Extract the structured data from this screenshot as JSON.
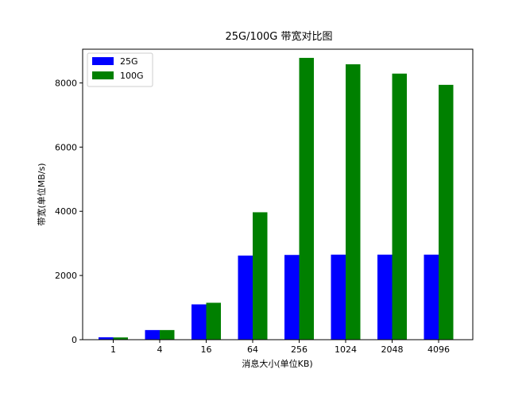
{
  "chart_data": {
    "type": "bar",
    "title": "25G/100G 带宽对比图",
    "xlabel": "消息大小(单位KB)",
    "ylabel": "带宽(单位MB/s)",
    "categories": [
      "1",
      "4",
      "16",
      "64",
      "256",
      "1024",
      "2048",
      "4096"
    ],
    "series": [
      {
        "name": "25G",
        "color": "#0000ff",
        "values": [
          75,
          300,
          1100,
          2620,
          2640,
          2650,
          2650,
          2650
        ]
      },
      {
        "name": "100G",
        "color": "#008000",
        "values": [
          70,
          300,
          1150,
          3970,
          8780,
          8580,
          8290,
          7940
        ]
      }
    ],
    "ylim": [
      0,
      9050
    ],
    "yticks": [
      0,
      2000,
      4000,
      6000,
      8000
    ],
    "legend_position": "top-left",
    "grid": false
  }
}
